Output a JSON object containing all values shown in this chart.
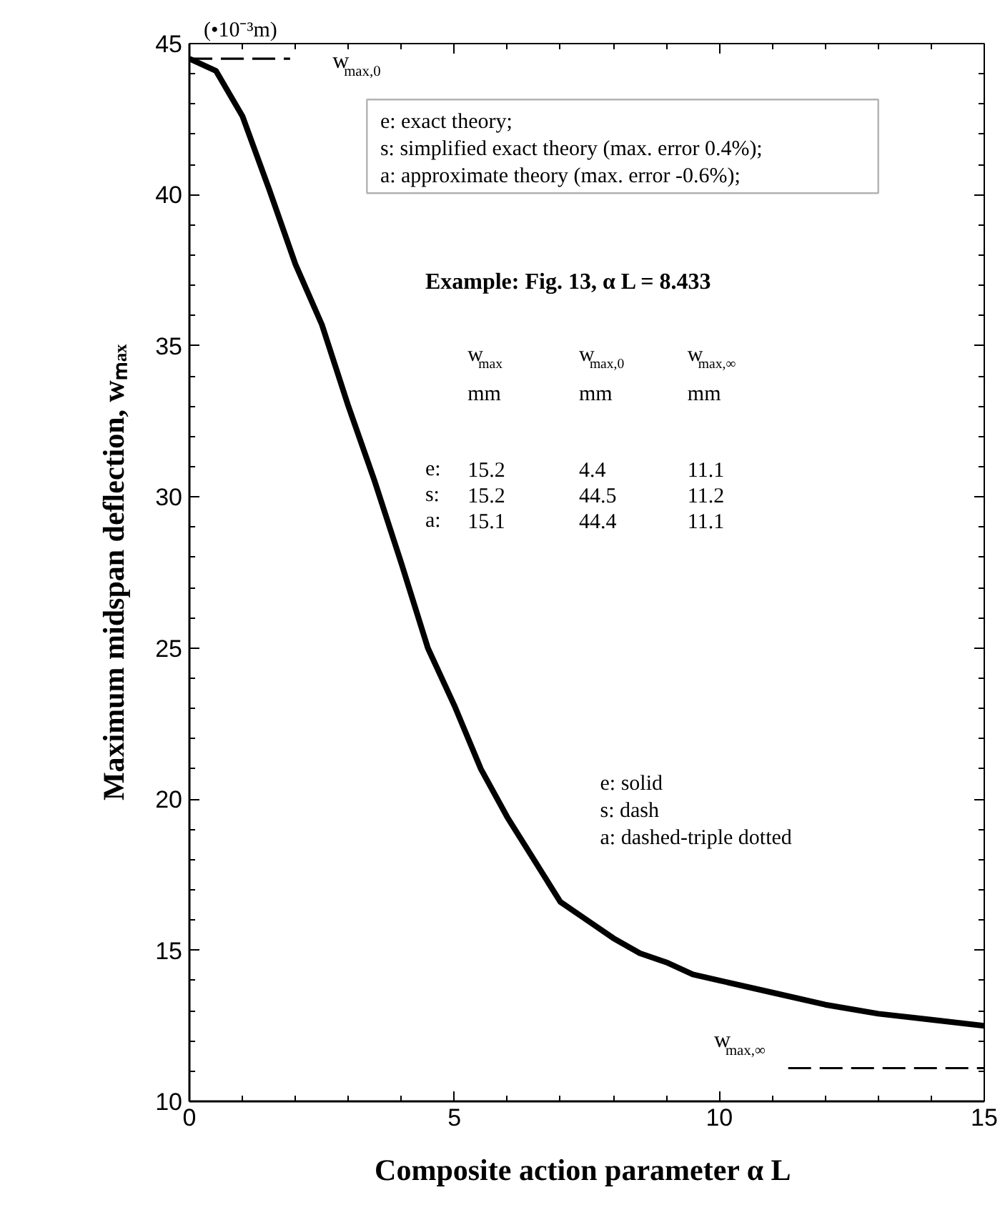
{
  "chart_data": {
    "type": "line",
    "xlabel": "Composite action parameter  α L",
    "ylabel": "Maximum midspan deflection, wₘₐₓ",
    "subtitle": "(•10⁻³m)",
    "xlim": [
      0,
      15
    ],
    "ylim": [
      10,
      45
    ],
    "xticks": [
      0,
      5,
      10,
      15
    ],
    "yticks": [
      10,
      15,
      20,
      25,
      30,
      35,
      40,
      45
    ],
    "grid": false,
    "marker": "none",
    "line_style": "solid",
    "series": [
      {
        "color": "#000000",
        "x": [
          0,
          0.5,
          1,
          1.5,
          2,
          2.5,
          3,
          3.5,
          4,
          4.5,
          5,
          5.5,
          6,
          6.5,
          7,
          7.5,
          8,
          8.5,
          9,
          9.5,
          10,
          11,
          12,
          13,
          14,
          15
        ],
        "values": [
          44.5,
          44.1,
          42.6,
          40.2,
          37.7,
          35.7,
          33.0,
          30.5,
          27.8,
          25.0,
          23.1,
          21.0,
          19.4,
          18.0,
          16.6,
          16.0,
          15.4,
          14.9,
          14.6,
          14.2,
          14.0,
          13.6,
          13.2,
          12.9,
          12.7,
          12.5
        ]
      },
      {
        "color": "#000000",
        "x": [
          0,
          1.9
        ],
        "values": [
          44.5,
          44.5
        ],
        "line_style": "dashed"
      },
      {
        "color": "#000000",
        "x": [
          11.3,
          15
        ],
        "values": [
          11.1,
          11.1
        ],
        "line_style": "dashed"
      }
    ],
    "annotations": [
      "w$_{max,0}$",
      "w$_{max,∞}$",
      "e: exact theory;",
      "s: simplified exact theory (max. error 0.4%);",
      "a: approximate theory (max. error -0.6%);",
      "Example:  Fig. 13, α L  = 8.433",
      "w$_{max}$",
      "w$_{max,0}$",
      "w$_{max,∞}$",
      "mm",
      "mm",
      "mm",
      "e:",
      "15.2",
      "4.4",
      "11.1",
      "s:",
      "15.2",
      "44.5",
      "11.2",
      "a:",
      "15.1",
      "44.4",
      "11.1",
      "e: solid",
      "s: dash",
      "a: dashed-triple dotted"
    ]
  }
}
